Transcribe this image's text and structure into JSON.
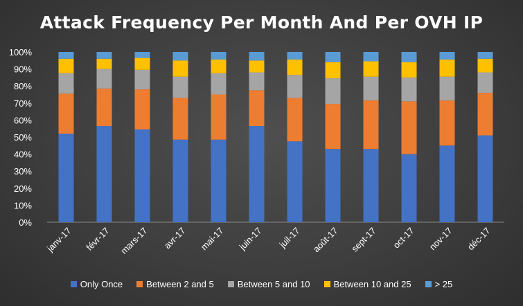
{
  "chart_data": {
    "type": "bar",
    "stacked": true,
    "percent_stacked": true,
    "title": "Attack Frequency Per Month And Per OVH IP",
    "categories": [
      "janv-17",
      "févr-17",
      "mars-17",
      "avr-17",
      "mai-17",
      "juin-17",
      "juil-17",
      "août-17",
      "sept-17",
      "oct-17",
      "nov-17",
      "déc-17"
    ],
    "series": [
      {
        "name": "Only Once",
        "color": "#4472c4",
        "values": [
          52,
          56.5,
          54.5,
          48.5,
          48.5,
          56.5,
          47.5,
          43,
          43,
          40,
          45,
          51
        ]
      },
      {
        "name": "Between 2 and 5",
        "color": "#ed7d31",
        "values": [
          23.5,
          22,
          23.5,
          24.5,
          26.5,
          21,
          25.5,
          26.5,
          28.5,
          31,
          26.5,
          25
        ]
      },
      {
        "name": "Between 5 and 10",
        "color": "#a5a5a5",
        "values": [
          12,
          11.5,
          11.5,
          12.5,
          12.5,
          10.5,
          13.5,
          15,
          14,
          14,
          14,
          12
        ]
      },
      {
        "name": "Between 10 and 25",
        "color": "#ffc000",
        "values": [
          8.5,
          6,
          7,
          9.5,
          8,
          7,
          9,
          9.5,
          9,
          9,
          10,
          8
        ]
      },
      {
        "name": "> 25",
        "color": "#5b9bd5",
        "values": [
          4,
          4,
          3.5,
          5,
          4.5,
          5,
          4.5,
          6,
          5.5,
          6,
          4.5,
          4
        ]
      }
    ],
    "ylim": [
      0,
      100
    ],
    "yticks": [
      "0%",
      "10%",
      "20%",
      "30%",
      "40%",
      "50%",
      "60%",
      "70%",
      "80%",
      "90%",
      "100%"
    ],
    "grid": false,
    "legend_position": "bottom"
  }
}
